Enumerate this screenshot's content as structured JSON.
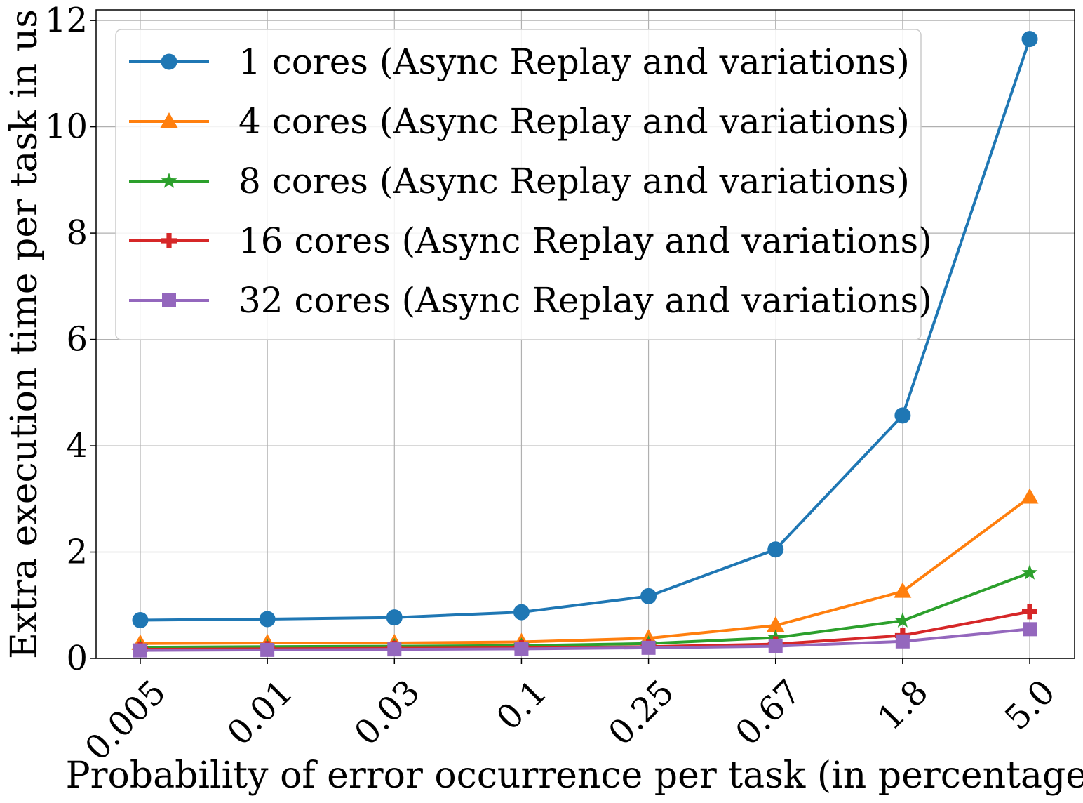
{
  "chart_data": {
    "type": "line",
    "xlabel": "Probability of error occurrence per task (in percentage)",
    "ylabel": "Extra execution time per task in us",
    "categories": [
      "0.005",
      "0.01",
      "0.03",
      "0.1",
      "0.25",
      "0.67",
      "1.8",
      "5.0"
    ],
    "ylim": [
      0,
      12.2
    ],
    "yticks": [
      0,
      2,
      4,
      6,
      8,
      10,
      12
    ],
    "grid": true,
    "legend_position": "top-left",
    "series": [
      {
        "name": "1 cores (Async Replay and variations)",
        "color": "#1f77b4",
        "marker": "circle",
        "values": [
          0.72,
          0.74,
          0.77,
          0.87,
          1.17,
          2.05,
          4.57,
          11.65
        ]
      },
      {
        "name": "4 cores (Async Replay and variations)",
        "color": "#ff7f0e",
        "marker": "triangle",
        "values": [
          0.28,
          0.29,
          0.29,
          0.31,
          0.38,
          0.62,
          1.26,
          3.03
        ]
      },
      {
        "name": "8 cores (Async Replay and variations)",
        "color": "#2ca02c",
        "marker": "star",
        "values": [
          0.21,
          0.22,
          0.23,
          0.24,
          0.28,
          0.39,
          0.71,
          1.61
        ]
      },
      {
        "name": "16 cores (Async Replay and variations)",
        "color": "#d62728",
        "marker": "plus",
        "values": [
          0.17,
          0.18,
          0.19,
          0.2,
          0.22,
          0.27,
          0.43,
          0.88
        ]
      },
      {
        "name": "32 cores (Async Replay and variations)",
        "color": "#9467bd",
        "marker": "square",
        "values": [
          0.15,
          0.16,
          0.17,
          0.18,
          0.2,
          0.23,
          0.32,
          0.55
        ]
      }
    ]
  }
}
